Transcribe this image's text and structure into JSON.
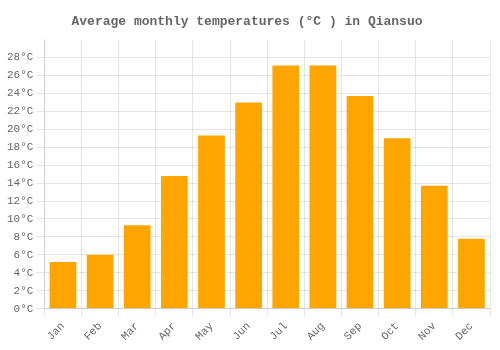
{
  "chart_data": {
    "type": "bar",
    "title": "Average monthly temperatures (°C ) in Qiansuo",
    "categories": [
      "Jan",
      "Feb",
      "Mar",
      "Apr",
      "May",
      "Jun",
      "Jul",
      "Aug",
      "Sep",
      "Oct",
      "Nov",
      "Dec"
    ],
    "values": [
      5.2,
      6.0,
      9.3,
      14.8,
      19.3,
      23.0,
      27.1,
      27.1,
      23.7,
      19.0,
      13.7,
      7.8
    ],
    "color": "#FFA500",
    "ylim": [
      0,
      30
    ],
    "yticks": [
      {
        "value": 0,
        "label": "0°C"
      },
      {
        "value": 2,
        "label": "2°C"
      },
      {
        "value": 4,
        "label": "4°C"
      },
      {
        "value": 6,
        "label": "6°C"
      },
      {
        "value": 8,
        "label": "8°C"
      },
      {
        "value": 10,
        "label": "10°C"
      },
      {
        "value": 12,
        "label": "12°C"
      },
      {
        "value": 14,
        "label": "14°C"
      },
      {
        "value": 16,
        "label": "16°C"
      },
      {
        "value": 18,
        "label": "18°C"
      },
      {
        "value": 20,
        "label": "20°C"
      },
      {
        "value": 22,
        "label": "22°C"
      },
      {
        "value": 24,
        "label": "24°C"
      },
      {
        "value": 26,
        "label": "26°C"
      },
      {
        "value": 28,
        "label": "28°C"
      }
    ],
    "grid": true
  }
}
